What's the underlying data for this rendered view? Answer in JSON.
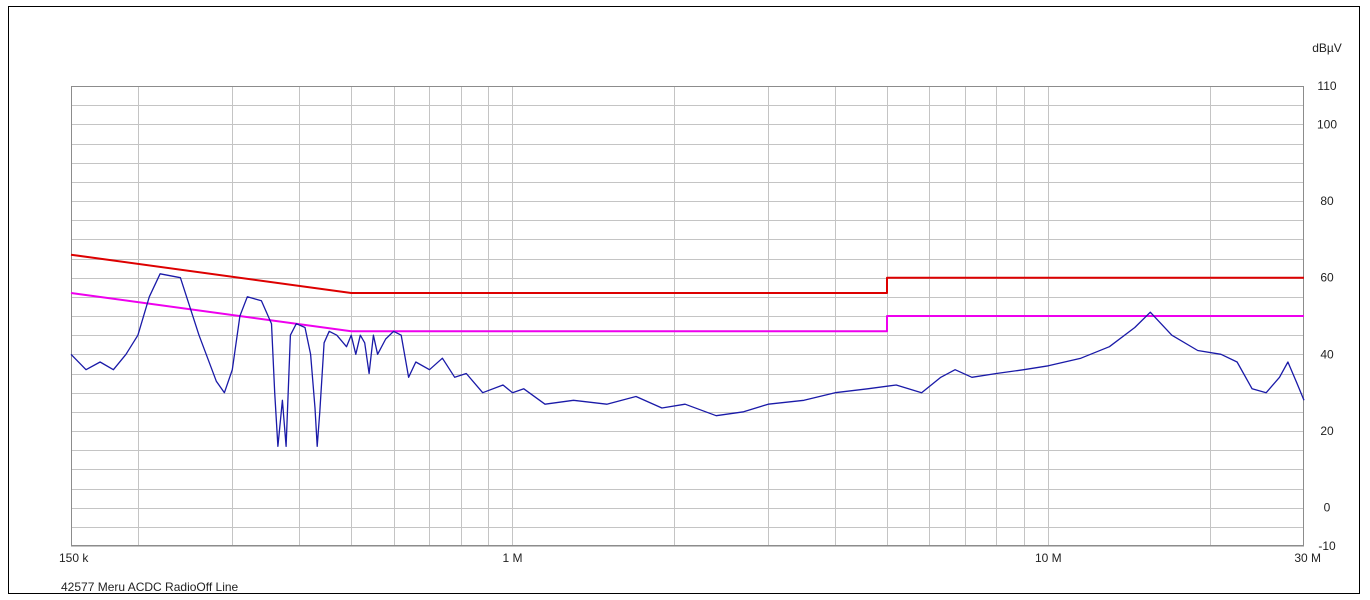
{
  "caption": "42577 Meru ACDC RadioOff Line",
  "chart_data": {
    "type": "line",
    "title": "",
    "xlabel": "",
    "ylabel": "dBµV",
    "xscale": "log",
    "xlim": [
      150000,
      30000000
    ],
    "ylim": [
      -10,
      110
    ],
    "grid": true,
    "y_tick_labels": [
      {
        "value": 110,
        "label": "110"
      },
      {
        "value": 100,
        "label": "100"
      },
      {
        "value": 80,
        "label": "80"
      },
      {
        "value": 60,
        "label": "60"
      },
      {
        "value": 40,
        "label": "40"
      },
      {
        "value": 20,
        "label": "20"
      },
      {
        "value": 0,
        "label": "0"
      },
      {
        "value": -10,
        "label": "-10"
      }
    ],
    "x_tick_labels": [
      {
        "value": 150000,
        "label": "150 k"
      },
      {
        "value": 1000000,
        "label": "1 M"
      },
      {
        "value": 10000000,
        "label": "10 M"
      },
      {
        "value": 30000000,
        "label": "30 M"
      }
    ],
    "series": [
      {
        "color": "#dd0000",
        "values": [
          [
            150000,
            66
          ],
          [
            500000,
            56
          ],
          [
            5000000,
            56
          ],
          [
            5000000,
            60
          ],
          [
            30000000,
            60
          ]
        ]
      },
      {
        "color": "#ee00ee",
        "values": [
          [
            150000,
            56
          ],
          [
            500000,
            46
          ],
          [
            5000000,
            46
          ],
          [
            5000000,
            50
          ],
          [
            30000000,
            50
          ]
        ]
      },
      {
        "color": "#1a1aa8",
        "values": [
          [
            150000,
            40
          ],
          [
            160000,
            36
          ],
          [
            170000,
            38
          ],
          [
            180000,
            36
          ],
          [
            190000,
            40
          ],
          [
            200000,
            45
          ],
          [
            210000,
            55
          ],
          [
            220000,
            61
          ],
          [
            240000,
            60
          ],
          [
            260000,
            45
          ],
          [
            280000,
            33
          ],
          [
            290000,
            30
          ],
          [
            300000,
            36
          ],
          [
            310000,
            50
          ],
          [
            320000,
            55
          ],
          [
            340000,
            54
          ],
          [
            355000,
            48
          ],
          [
            360000,
            30
          ],
          [
            365000,
            16
          ],
          [
            372000,
            28
          ],
          [
            378000,
            16
          ],
          [
            385000,
            45
          ],
          [
            395000,
            48
          ],
          [
            410000,
            47
          ],
          [
            420000,
            40
          ],
          [
            428000,
            26
          ],
          [
            432000,
            16
          ],
          [
            437000,
            25
          ],
          [
            445000,
            43
          ],
          [
            455000,
            46
          ],
          [
            470000,
            45
          ],
          [
            490000,
            42
          ],
          [
            500000,
            45
          ],
          [
            510000,
            40
          ],
          [
            520000,
            45
          ],
          [
            530000,
            43
          ],
          [
            540000,
            35
          ],
          [
            550000,
            45
          ],
          [
            560000,
            40
          ],
          [
            580000,
            44
          ],
          [
            600000,
            46
          ],
          [
            620000,
            45
          ],
          [
            640000,
            34
          ],
          [
            660000,
            38
          ],
          [
            700000,
            36
          ],
          [
            740000,
            39
          ],
          [
            780000,
            34
          ],
          [
            820000,
            35
          ],
          [
            880000,
            30
          ],
          [
            960000,
            32
          ],
          [
            1000000,
            30
          ],
          [
            1050000,
            31
          ],
          [
            1150000,
            27
          ],
          [
            1300000,
            28
          ],
          [
            1500000,
            27
          ],
          [
            1700000,
            29
          ],
          [
            1900000,
            26
          ],
          [
            2100000,
            27
          ],
          [
            2400000,
            24
          ],
          [
            2700000,
            25
          ],
          [
            3000000,
            27
          ],
          [
            3500000,
            28
          ],
          [
            4000000,
            30
          ],
          [
            4600000,
            31
          ],
          [
            5200000,
            32
          ],
          [
            5800000,
            30
          ],
          [
            6300000,
            34
          ],
          [
            6700000,
            36
          ],
          [
            7200000,
            34
          ],
          [
            8000000,
            35
          ],
          [
            9000000,
            36
          ],
          [
            10000000,
            37
          ],
          [
            11500000,
            39
          ],
          [
            13000000,
            42
          ],
          [
            14500000,
            47
          ],
          [
            15500000,
            51
          ],
          [
            17000000,
            45
          ],
          [
            19000000,
            41
          ],
          [
            21000000,
            40
          ],
          [
            22500000,
            38
          ],
          [
            24000000,
            31
          ],
          [
            25500000,
            30
          ],
          [
            27000000,
            34
          ],
          [
            28000000,
            38
          ],
          [
            29000000,
            33
          ],
          [
            30000000,
            28
          ]
        ]
      }
    ]
  }
}
